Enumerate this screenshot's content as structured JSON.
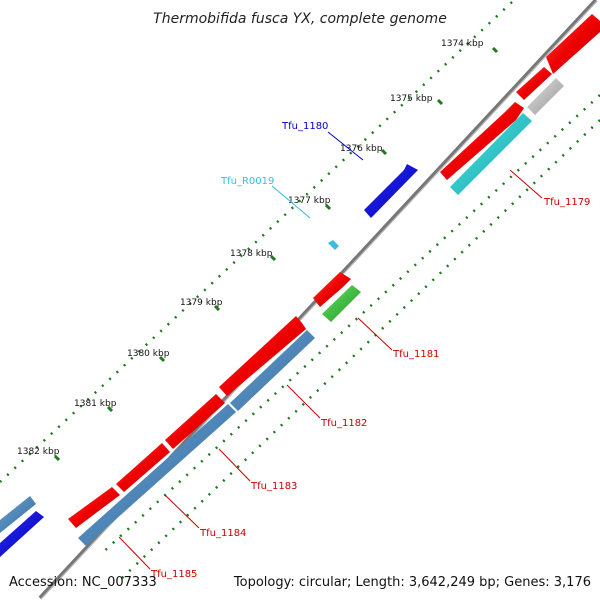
{
  "title": "Thermobifida fusca YX, complete genome",
  "accession": "Accession: NC_007333",
  "topology": "Topology: circular; Length: 3,642,249 bp; Genes: 3,176",
  "ticks": [
    "1374 kbp",
    "1375 kbp",
    "1376 kbp",
    "1377 kbp",
    "1378 kbp",
    "1379 kbp",
    "1380 kbp",
    "1381 kbp",
    "1382 kbp"
  ],
  "gene_labels": {
    "tfu_1179": "Tfu_1179",
    "tfu_1180": "Tfu_1180",
    "tfu_r0019": "Tfu_R0019",
    "tfu_1181": "Tfu_1181",
    "tfu_1182": "Tfu_1182",
    "tfu_1183": "Tfu_1183",
    "tfu_1184": "Tfu_1184",
    "tfu_1185": "Tfu_1185"
  },
  "colors": {
    "cds": "#ff0000",
    "blast_steel": "#4f86b8",
    "trna": "#38bde0",
    "blue_feature": "#0000dd",
    "cyan_feature": "#19c8cc",
    "green_feature": "#33bb33",
    "gray_feature": "#bbbbbb",
    "backbone": "#7f7f7f",
    "tick_dots": "#1f7a1f",
    "cds_label": "#cc0000"
  }
}
